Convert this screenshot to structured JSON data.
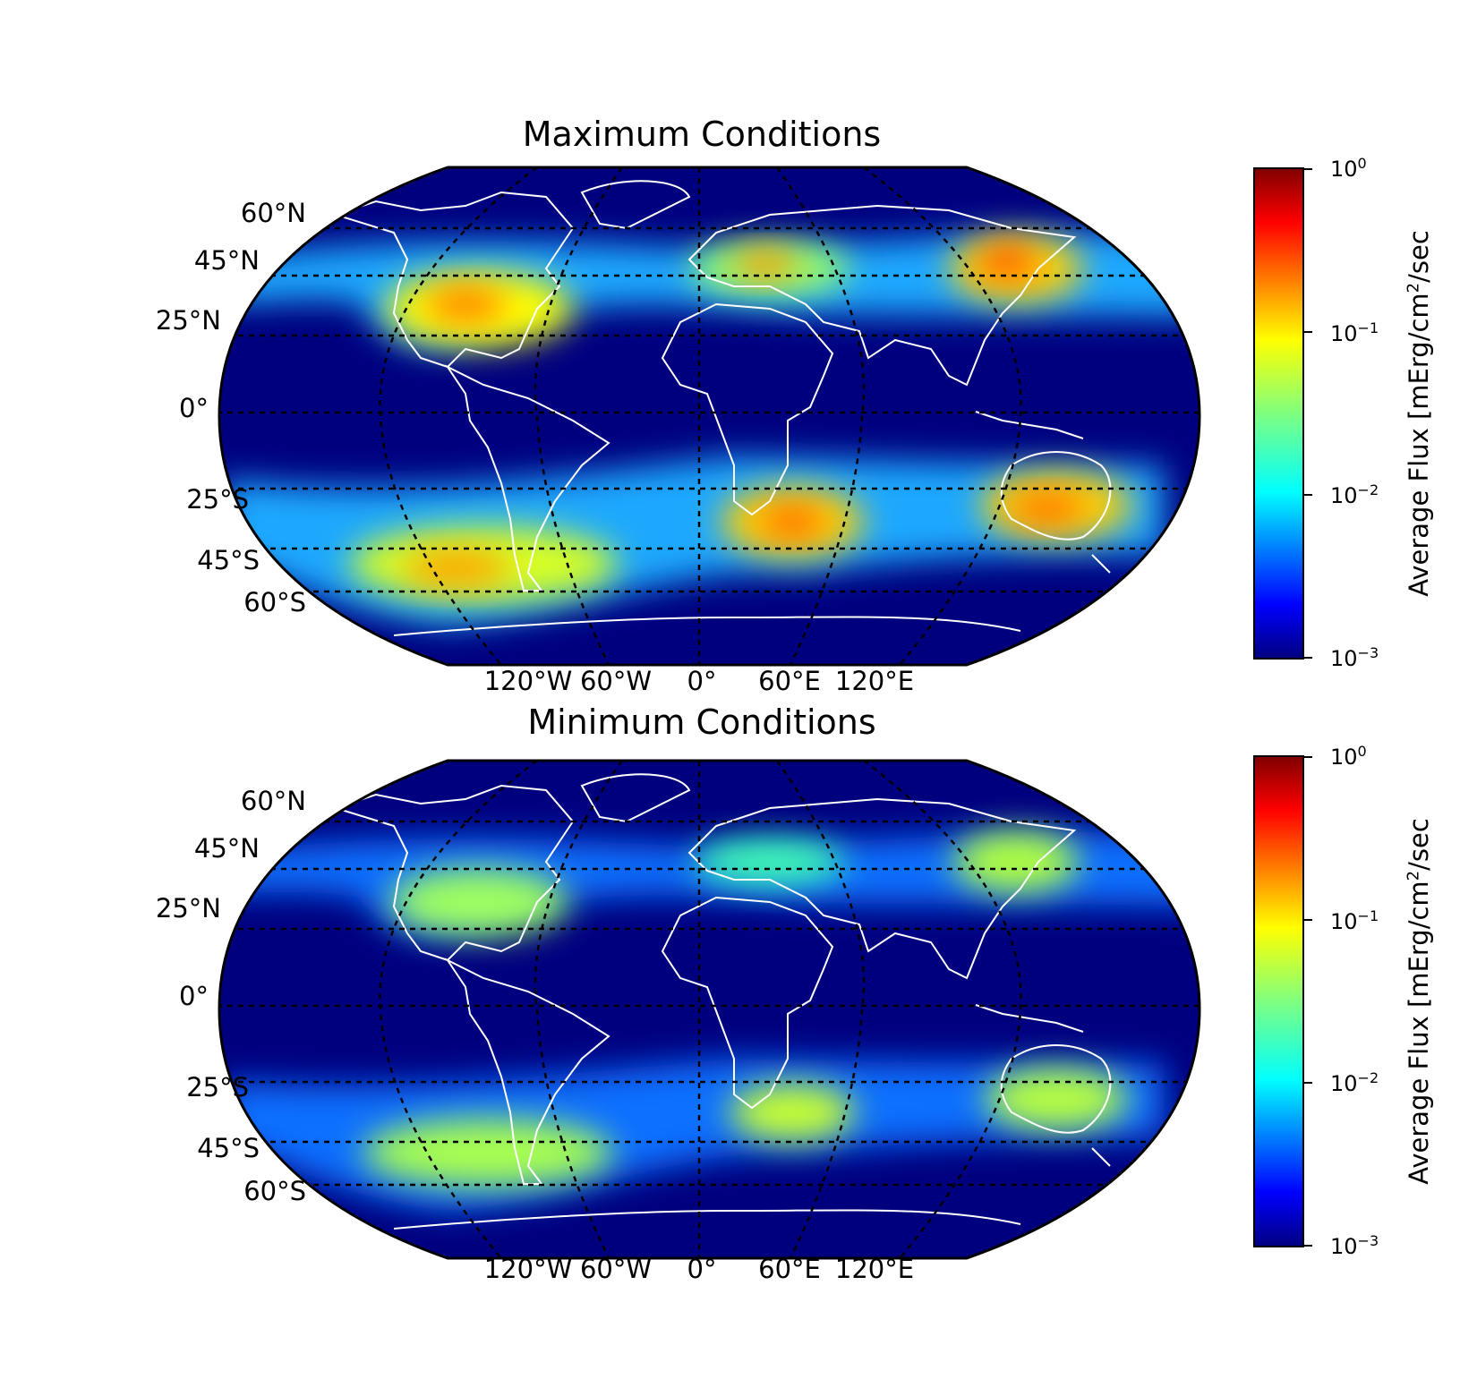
{
  "panels": [
    {
      "title": "Maximum Conditions",
      "lat_labels": [
        "60°N",
        "45°N",
        "25°N",
        "0°",
        "25°S",
        "45°S",
        "60°S"
      ],
      "lon_labels": [
        "120°W",
        "60°W",
        "0°",
        "60°E",
        "120°E"
      ],
      "colorbar": {
        "label_prefix": "Average Flux [mErg/cm",
        "label_sup": "2",
        "label_suffix": "/sec",
        "ticks": [
          {
            "base": "10",
            "exp": "0"
          },
          {
            "base": "10",
            "exp": "−1"
          },
          {
            "base": "10",
            "exp": "−2"
          },
          {
            "base": "10",
            "exp": "−3"
          }
        ]
      }
    },
    {
      "title": "Minimum Conditions",
      "lat_labels": [
        "60°N",
        "45°N",
        "25°N",
        "0°",
        "25°S",
        "45°S",
        "60°S"
      ],
      "lon_labels": [
        "120°W",
        "60°W",
        "0°",
        "60°E",
        "120°E"
      ],
      "colorbar": {
        "label_prefix": "Average Flux [mErg/cm",
        "label_sup": "2",
        "label_suffix": "/sec",
        "ticks": [
          {
            "base": "10",
            "exp": "0"
          },
          {
            "base": "10",
            "exp": "−1"
          },
          {
            "base": "10",
            "exp": "−2"
          },
          {
            "base": "10",
            "exp": "−3"
          }
        ]
      }
    }
  ],
  "colormap": "jet",
  "colors": {
    "background_ocean": "#00007f",
    "coastline": "#ffffff",
    "gridline": "#000000"
  }
}
